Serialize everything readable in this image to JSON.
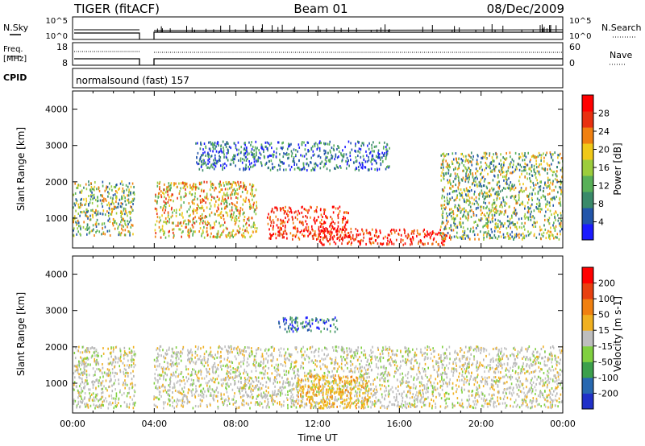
{
  "header": {
    "radar": "TIGER (fitACF)",
    "beam": "Beam 01",
    "date": "08/Dec/2009"
  },
  "aux": {
    "nsky_label": "N.Sky",
    "nsearch_label": "N.Search",
    "freq_label_line1": "Freq.",
    "freq_label_line2": "[MHz]",
    "nave_label": "Nave",
    "cpid_label": "CPID",
    "cpid_text": "normalsound (fast) 157",
    "noise_ticks": [
      "10^5",
      "10^0"
    ],
    "freq_ticks": [
      "18",
      "8"
    ],
    "nave_ticks": [
      "60",
      "0"
    ]
  },
  "chart_data": [
    {
      "type": "heatmap",
      "title": "",
      "ylabel": "Slant Range [km]",
      "xlabel": "",
      "xlim": [
        0,
        24
      ],
      "ylim": [
        180,
        4500
      ],
      "y_ticks": [
        "1000",
        "2000",
        "3000",
        "4000"
      ],
      "colorbar": {
        "label": "Power [dB]",
        "ticks": [
          "28",
          "24",
          "20",
          "16",
          "12",
          "8",
          "4"
        ],
        "colors": [
          "#1a1aff",
          "#2255aa",
          "#3a8a6a",
          "#58b058",
          "#9ccd3c",
          "#f0c818",
          "#f08010",
          "#e83010",
          "#ff0000"
        ]
      },
      "data_gap_hours": [
        3.05,
        3.95
      ],
      "echo_regions": [
        {
          "t0": 0.0,
          "t1": 3.0,
          "r0": 500,
          "r1": 2000,
          "level": "green-orange"
        },
        {
          "t0": 4.0,
          "t1": 9.0,
          "r0": 450,
          "r1": 2000,
          "level": "orange-red"
        },
        {
          "t0": 9.5,
          "t1": 13.5,
          "r0": 400,
          "r1": 1300,
          "level": "red"
        },
        {
          "t0": 12.0,
          "t1": 18.5,
          "r0": 250,
          "r1": 700,
          "level": "red"
        },
        {
          "t0": 6.0,
          "t1": 15.5,
          "r0": 2300,
          "r1": 3100,
          "level": "blue"
        },
        {
          "t0": 18.0,
          "t1": 24.0,
          "r0": 400,
          "r1": 2800,
          "level": "green-orange"
        }
      ]
    },
    {
      "type": "heatmap",
      "title": "",
      "ylabel": "Slant Range [km]",
      "xlabel": "Time UT",
      "xlim": [
        0,
        24
      ],
      "ylim": [
        180,
        4500
      ],
      "x_ticks": [
        "00:00",
        "04:00",
        "08:00",
        "12:00",
        "16:00",
        "20:00",
        "00:00"
      ],
      "y_ticks": [
        "1000",
        "2000",
        "3000",
        "4000"
      ],
      "colorbar": {
        "label": "Velocity [m s-1]",
        "ticks": [
          "200",
          "100",
          "50",
          "15",
          "-15",
          "-50",
          "-100",
          "-200"
        ],
        "colors": [
          "#2030c8",
          "#2868b0",
          "#3ca04c",
          "#80d040",
          "#bebebe",
          "#f0b020",
          "#f08010",
          "#e84010",
          "#ff0000"
        ]
      },
      "data_gap_hours": [
        3.05,
        3.95
      ],
      "echo_regions": [
        {
          "t0": 0.0,
          "t1": 24.0,
          "r0": 300,
          "r1": 2000,
          "level": "grey"
        },
        {
          "t0": 11.0,
          "t1": 14.5,
          "r0": 300,
          "r1": 1200,
          "level": "orange"
        },
        {
          "t0": 10.0,
          "t1": 13.0,
          "r0": 2400,
          "r1": 2800,
          "level": "blue"
        }
      ]
    }
  ]
}
